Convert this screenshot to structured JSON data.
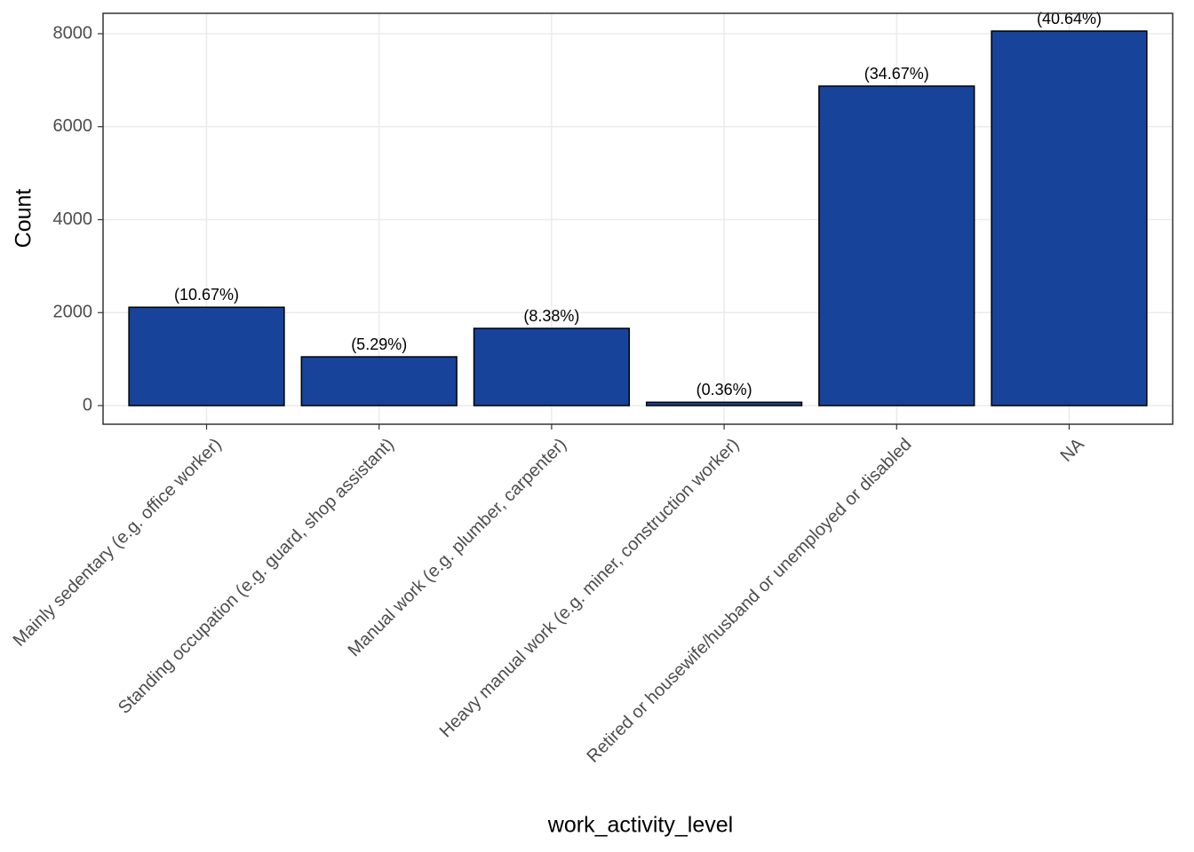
{
  "chart_data": {
    "type": "bar",
    "x_label": "work_activity_level",
    "y_label": "Count",
    "categories": [
      "Mainly sedentary (e.g. office worker)",
      "Standing occupation (e.g. guard, shop assistant)",
      "Manual work (e.g. plumber, carpenter)",
      "Heavy manual work (e.g. miner, construction worker)",
      "Retired or housewife/husband or unemployed or disabled",
      "NA"
    ],
    "values": [
      2115,
      1049,
      1661,
      71,
      6873,
      8057
    ],
    "bar_labels": [
      "(10.67%)",
      "(5.29%)",
      "(8.38%)",
      "(0.36%)",
      "(34.67%)",
      "(40.64%)"
    ],
    "color": "#17439b",
    "ylim": [
      -401,
      8439
    ],
    "yticks": [
      0,
      2000,
      4000,
      6000,
      8000
    ],
    "grid": true
  }
}
